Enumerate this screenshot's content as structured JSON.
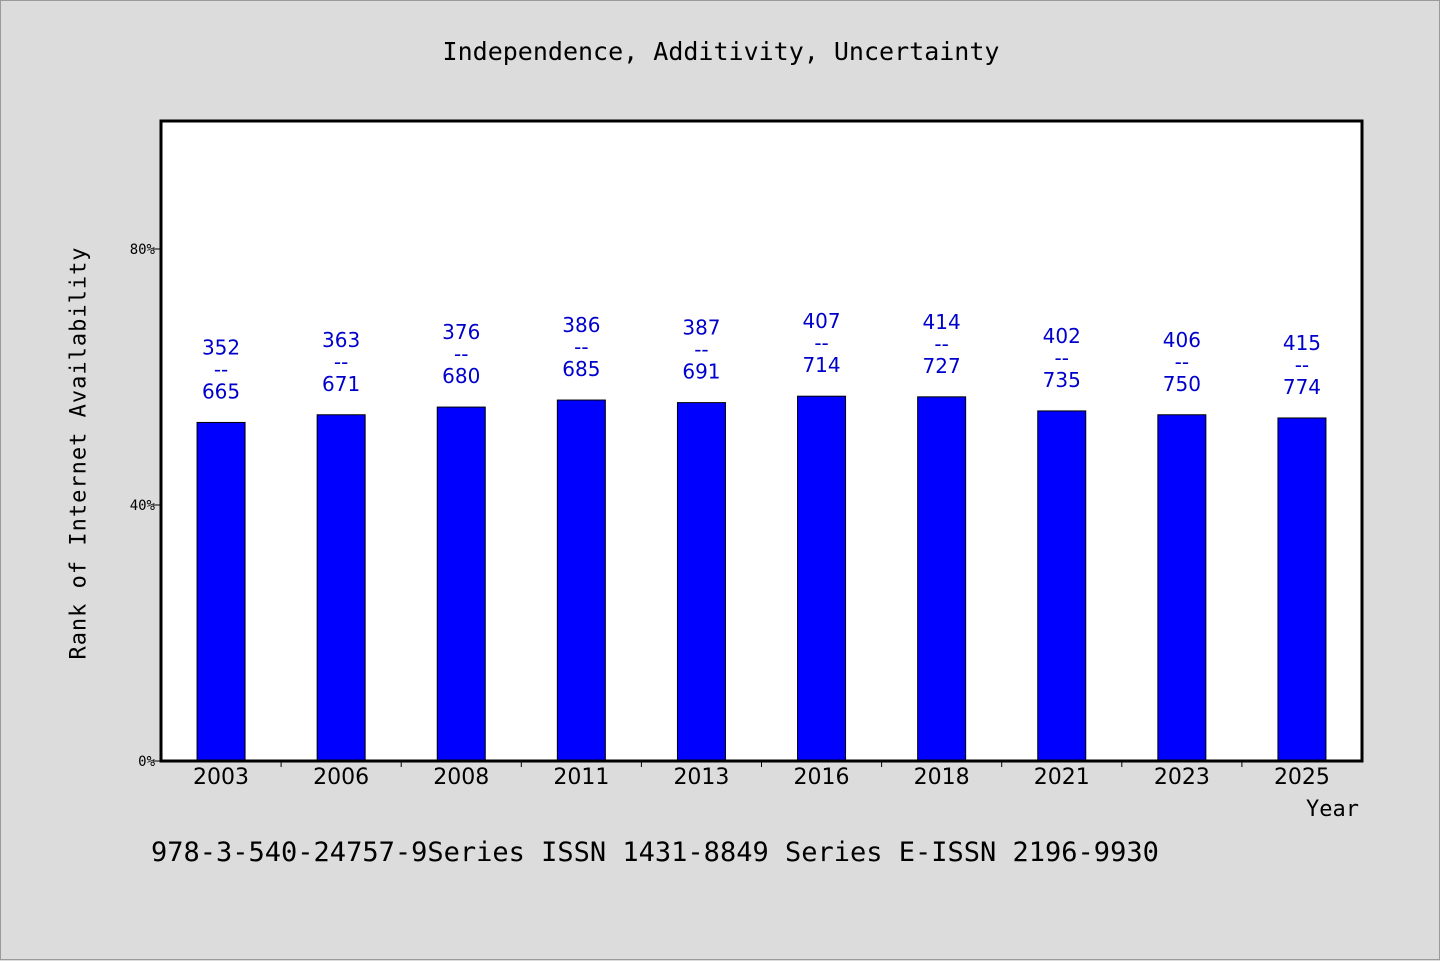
{
  "chart_data": {
    "type": "bar",
    "title": "Independence, Additivity, Uncertainty",
    "xlabel": "Year",
    "ylabel": "Rank of Internet Availability",
    "categories": [
      "2003",
      "2006",
      "2008",
      "2011",
      "2013",
      "2016",
      "2018",
      "2021",
      "2023",
      "2025"
    ],
    "values": [
      0.529,
      0.541,
      0.553,
      0.564,
      0.56,
      0.57,
      0.569,
      0.547,
      0.541,
      0.536
    ],
    "labels": [
      {
        "top": "352",
        "sep": "--",
        "bottom": "665"
      },
      {
        "top": "363",
        "sep": "--",
        "bottom": "671"
      },
      {
        "top": "376",
        "sep": "--",
        "bottom": "680"
      },
      {
        "top": "386",
        "sep": "--",
        "bottom": "685"
      },
      {
        "top": "387",
        "sep": "--",
        "bottom": "691"
      },
      {
        "top": "407",
        "sep": "--",
        "bottom": "714"
      },
      {
        "top": "414",
        "sep": "--",
        "bottom": "727"
      },
      {
        "top": "402",
        "sep": "--",
        "bottom": "735"
      },
      {
        "top": "406",
        "sep": "--",
        "bottom": "750"
      },
      {
        "top": "415",
        "sep": "--",
        "bottom": "774"
      }
    ],
    "ylim": [
      0,
      1.0
    ],
    "yticks": [
      0,
      0.4,
      0.8
    ],
    "ytick_labels": [
      "0%",
      "40%",
      "80%"
    ],
    "grid": false,
    "bar_color": "#0000ff",
    "label_color": "#0000cc"
  },
  "footer": "978-3-540-24757-9Series ISSN 1431-8849 Series E-ISSN 2196-9930"
}
